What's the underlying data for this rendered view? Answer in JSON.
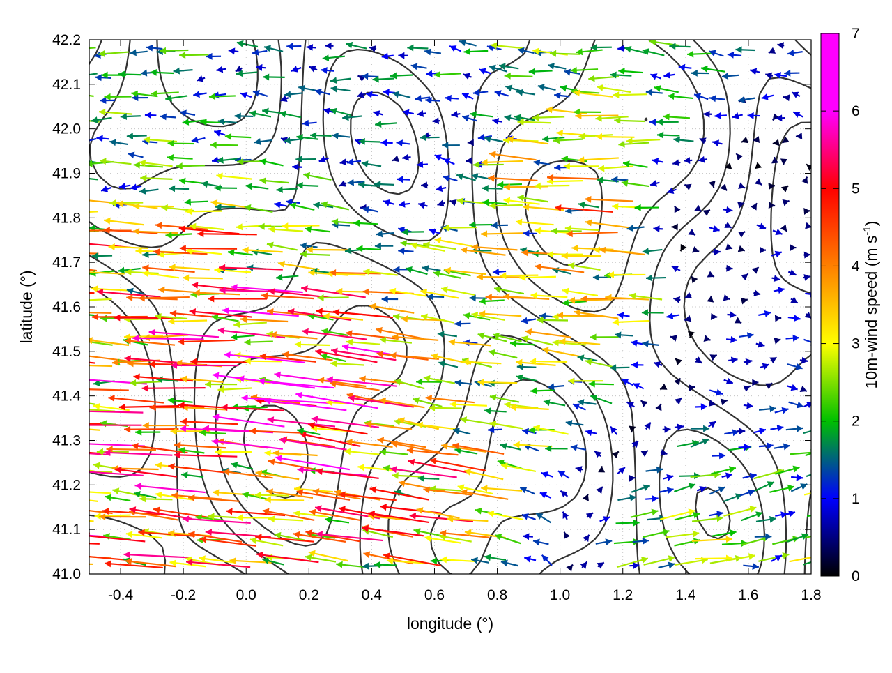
{
  "chart_data": {
    "type": "vector-field",
    "xlabel": "longitude (°)",
    "ylabel": "latitude (°)",
    "xlim": [
      -0.5,
      1.8
    ],
    "ylim": [
      41.0,
      42.2
    ],
    "x_ticks": [
      "-0.4",
      "-0.2",
      "0.0",
      "0.2",
      "0.4",
      "0.6",
      "0.8",
      "1.0",
      "1.2",
      "1.4",
      "1.6",
      "1.8"
    ],
    "x_tick_values": [
      -0.4,
      -0.2,
      0.0,
      0.2,
      0.4,
      0.6,
      0.8,
      1.0,
      1.2,
      1.4,
      1.6,
      1.8
    ],
    "y_ticks": [
      "41.0",
      "41.1",
      "41.2",
      "41.3",
      "41.4",
      "41.5",
      "41.6",
      "41.7",
      "41.8",
      "41.9",
      "42.0",
      "42.1",
      "42.2"
    ],
    "y_tick_values": [
      41.0,
      41.1,
      41.2,
      41.3,
      41.4,
      41.5,
      41.6,
      41.7,
      41.8,
      41.9,
      42.0,
      42.1,
      42.2
    ],
    "grid": true,
    "colorbar": {
      "label_main": "10m-wind speed (m s",
      "label_sup": "-1",
      "label_end": ")",
      "range": [
        0,
        7
      ],
      "ticks": [
        "0",
        "1",
        "2",
        "3",
        "4",
        "5",
        "6",
        "7"
      ],
      "tick_values": [
        0,
        1,
        2,
        3,
        4,
        5,
        6,
        7
      ],
      "colors": [
        "#000000",
        "#0000ff",
        "#00c000",
        "#ffff00",
        "#ff8000",
        "#ff0000",
        "#ff00ff"
      ]
    },
    "vector_samples": [
      {
        "lon": -0.4,
        "lat": 41.55,
        "u": -5.2,
        "v": 0.3
      },
      {
        "lon": -0.3,
        "lat": 41.6,
        "u": -4.8,
        "v": 0.2
      },
      {
        "lon": -0.2,
        "lat": 41.5,
        "u": -5.5,
        "v": 0.1
      },
      {
        "lon": -0.1,
        "lat": 41.45,
        "u": -5.0,
        "v": 0.1
      },
      {
        "lon": 0.0,
        "lat": 41.3,
        "u": -5.2,
        "v": 0.4
      },
      {
        "lon": 0.1,
        "lat": 41.2,
        "u": -4.9,
        "v": 0.5
      },
      {
        "lon": 0.2,
        "lat": 41.1,
        "u": -4.6,
        "v": 0.6
      },
      {
        "lon": 0.3,
        "lat": 41.4,
        "u": -6.6,
        "v": 0.7
      },
      {
        "lon": 0.4,
        "lat": 41.35,
        "u": -5.8,
        "v": 0.9
      },
      {
        "lon": 0.3,
        "lat": 41.15,
        "u": -5.4,
        "v": 0.8
      },
      {
        "lon": 1.0,
        "lat": 41.75,
        "u": -3.8,
        "v": 0.2
      },
      {
        "lon": 1.1,
        "lat": 41.8,
        "u": -4.2,
        "v": 0.1
      },
      {
        "lon": 1.2,
        "lat": 41.7,
        "u": -3.6,
        "v": 0.2
      },
      {
        "lon": 0.8,
        "lat": 41.5,
        "u": -3.2,
        "v": 0.4
      },
      {
        "lon": 1.5,
        "lat": 41.05,
        "u": 3.0,
        "v": 0.3
      },
      {
        "lon": 1.7,
        "lat": 41.1,
        "u": 2.8,
        "v": 0.5
      },
      {
        "lon": 1.6,
        "lat": 41.15,
        "u": 2.2,
        "v": 0.6
      },
      {
        "lon": 1.65,
        "lat": 41.5,
        "u": 1.1,
        "v": -0.1
      },
      {
        "lon": 1.5,
        "lat": 41.75,
        "u": 0.9,
        "v": 0.0
      },
      {
        "lon": -0.3,
        "lat": 42.0,
        "u": -2.4,
        "v": 0.1
      },
      {
        "lon": 0.2,
        "lat": 42.1,
        "u": -1.6,
        "v": 0.1
      },
      {
        "lon": 0.6,
        "lat": 41.9,
        "u": -1.4,
        "v": 0.2
      }
    ]
  }
}
